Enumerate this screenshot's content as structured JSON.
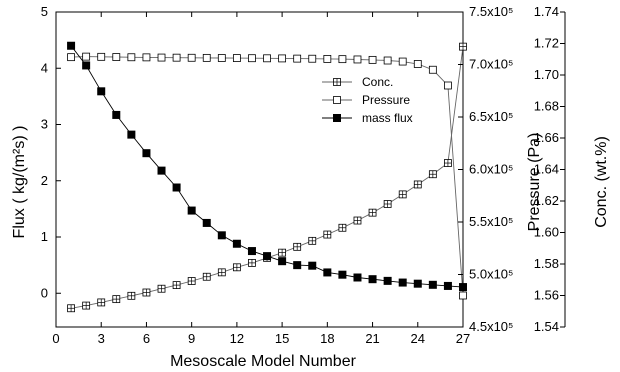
{
  "chart_data": {
    "type": "line",
    "xlabel": "Mesoscale Model Number",
    "x_ticks": [
      "0",
      "3",
      "6",
      "9",
      "12",
      "15",
      "18",
      "21",
      "24",
      "27"
    ],
    "xlim": [
      0,
      27
    ],
    "ylabel_left": "Flux ( kg/(m²s) )",
    "y_left_ticks": [
      "0",
      "1",
      "2",
      "3",
      "4",
      "5"
    ],
    "ylim_left": [
      -0.6,
      5
    ],
    "ylabel_pressure": "Pressure (Pa)",
    "y_pressure_ticks": [
      "4.5x10⁵",
      "5.0x10⁵",
      "5.5x10⁵",
      "6.0x10⁵",
      "6.5x10⁵",
      "7.0x10⁵",
      "7.5x10⁵"
    ],
    "ylim_pressure": [
      450000,
      750000
    ],
    "ylabel_conc": "Conc. (wt.%)",
    "y_conc_ticks": [
      "1.54",
      "1.56",
      "1.58",
      "1.60",
      "1.62",
      "1.64",
      "1.66",
      "1.68",
      "1.70",
      "1.72",
      "1.74"
    ],
    "ylim_conc": [
      1.54,
      1.74
    ],
    "legend_position": "upper-right",
    "grid": false,
    "x": [
      1,
      2,
      3,
      4,
      5,
      6,
      7,
      8,
      9,
      10,
      11,
      12,
      13,
      14,
      15,
      16,
      17,
      18,
      19,
      20,
      21,
      22,
      23,
      24,
      25,
      26,
      27
    ],
    "series": [
      {
        "name": "Conc.",
        "axis": "conc",
        "marker": "square-plus",
        "values": [
          1.5519,
          1.5536,
          1.5556,
          1.5577,
          1.5598,
          1.5619,
          1.5643,
          1.5666,
          1.5692,
          1.5719,
          1.5747,
          1.5779,
          1.5807,
          1.5839,
          1.5872,
          1.5909,
          1.5947,
          1.5987,
          1.603,
          1.6076,
          1.6126,
          1.6181,
          1.6242,
          1.6305,
          1.637,
          1.6441,
          1.718
        ]
      },
      {
        "name": "Pressure",
        "axis": "pressure",
        "marker": "open-square",
        "values": [
          707000,
          707500,
          707300,
          707100,
          706900,
          706800,
          706600,
          706500,
          706400,
          706300,
          706200,
          706100,
          706000,
          705900,
          705800,
          705600,
          705500,
          705300,
          705100,
          704800,
          704400,
          703800,
          702800,
          700500,
          695000,
          680000,
          480000
        ]
      },
      {
        "name": "mass flux",
        "axis": "flux",
        "marker": "filled-square",
        "values": [
          4.4,
          4.05,
          3.59,
          3.17,
          2.82,
          2.49,
          2.18,
          1.88,
          1.47,
          1.25,
          1.03,
          0.88,
          0.75,
          0.66,
          0.57,
          0.5,
          0.49,
          0.37,
          0.33,
          0.28,
          0.25,
          0.22,
          0.19,
          0.17,
          0.15,
          0.13,
          0.11
        ]
      }
    ]
  }
}
